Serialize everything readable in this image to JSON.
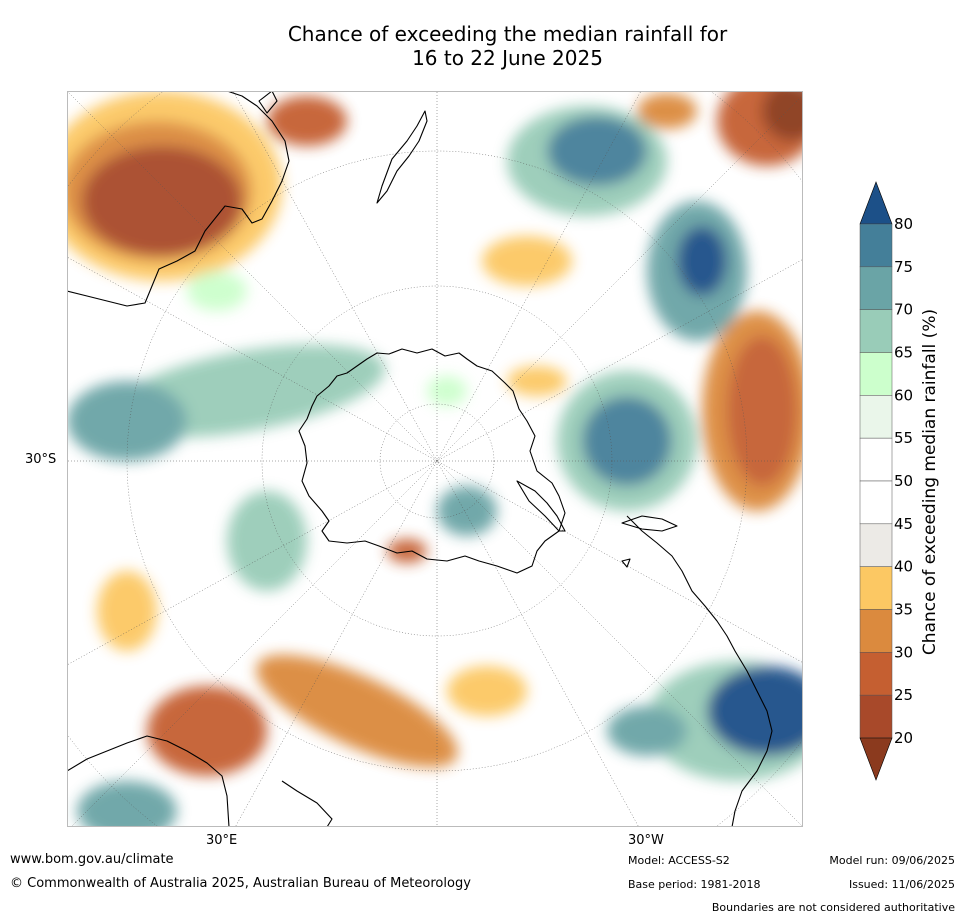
{
  "title": {
    "line1": "Chance of exceeding the median rainfall for",
    "line2": "16 to 22 June 2025"
  },
  "map": {
    "projection": "south-polar stereographic",
    "lat_label": "30°S",
    "lon_labels": [
      "30°E",
      "30°W"
    ]
  },
  "colorbar": {
    "title": "Chance of exceeding median rainfall (%)",
    "ticks": [
      "20",
      "25",
      "30",
      "35",
      "40",
      "45",
      "50",
      "55",
      "60",
      "65",
      "70",
      "75",
      "80"
    ],
    "colors": [
      "#8b3a1e",
      "#a8492a",
      "#c55f31",
      "#db8a3e",
      "#fcc863",
      "#eceae6",
      "#ffffff",
      "#ffffff",
      "#eaf6ea",
      "#ccffcc",
      "#99ccb8",
      "#6aa4a6",
      "#447f99",
      "#1c5088"
    ],
    "extend": "both"
  },
  "footer": {
    "website": "www.bom.gov.au/climate",
    "copyright": "© Commonwealth of Australia 2025, Australian Bureau of Meteorology",
    "model": "Model: ACCESS-S2",
    "base_period": "Base period: 1981-2018",
    "model_run": "Model run: 09/06/2025",
    "issued": "Issued: 11/06/2025",
    "disclaimer": "Boundaries are not considered authoritative"
  }
}
